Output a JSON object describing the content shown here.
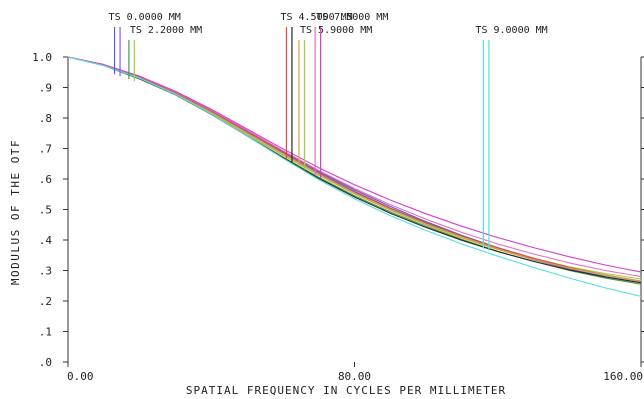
{
  "chart_data": {
    "type": "line",
    "title": "",
    "xlabel": "SPATIAL FREQUENCY IN CYCLES PER MILLIMETER",
    "ylabel": "MODULUS OF THE OTF",
    "xlim": [
      0,
      160
    ],
    "ylim": [
      0,
      1.0
    ],
    "x_ticks": [
      {
        "value": 0,
        "label": "0.00"
      },
      {
        "value": 80,
        "label": "80.00"
      },
      {
        "value": 160,
        "label": "160.00"
      }
    ],
    "y_ticks": [
      {
        "value": 1.0,
        "label": "1.0"
      },
      {
        "value": 0.9,
        "label": ".9"
      },
      {
        "value": 0.8,
        "label": ".8"
      },
      {
        "value": 0.7,
        "label": ".7"
      },
      {
        "value": 0.6,
        "label": ".6"
      },
      {
        "value": 0.5,
        "label": ".5"
      },
      {
        "value": 0.4,
        "label": ".4"
      },
      {
        "value": 0.3,
        "label": ".3"
      },
      {
        "value": 0.2,
        "label": ".2"
      },
      {
        "value": 0.1,
        "label": ".1"
      },
      {
        "value": 0.0,
        "label": ".0"
      }
    ],
    "grid": false,
    "x": [
      0,
      10,
      20,
      30,
      40,
      50,
      60,
      70,
      80,
      90,
      100,
      110,
      120,
      130,
      140,
      150,
      160
    ],
    "series": [
      {
        "color": "#5a5ad8",
        "values": [
          1.0,
          0.975,
          0.935,
          0.885,
          0.825,
          0.757,
          0.69,
          0.625,
          0.565,
          0.51,
          0.46,
          0.415,
          0.375,
          0.34,
          0.31,
          0.285,
          0.265
        ]
      },
      {
        "color": "#8060e0",
        "values": [
          1.0,
          0.974,
          0.933,
          0.882,
          0.82,
          0.752,
          0.684,
          0.618,
          0.557,
          0.503,
          0.455,
          0.41,
          0.37,
          0.335,
          0.305,
          0.28,
          0.26
        ]
      },
      {
        "color": "#40a040",
        "values": [
          1.0,
          0.972,
          0.928,
          0.876,
          0.812,
          0.742,
          0.672,
          0.606,
          0.545,
          0.492,
          0.445,
          0.402,
          0.363,
          0.33,
          0.3,
          0.275,
          0.255
        ]
      },
      {
        "color": "#a0d040",
        "values": [
          1.0,
          0.973,
          0.932,
          0.88,
          0.818,
          0.75,
          0.682,
          0.615,
          0.553,
          0.5,
          0.452,
          0.41,
          0.372,
          0.34,
          0.312,
          0.29,
          0.272
        ]
      },
      {
        "color": "#e04848",
        "values": [
          1.0,
          0.974,
          0.934,
          0.884,
          0.823,
          0.756,
          0.688,
          0.622,
          0.56,
          0.505,
          0.457,
          0.413,
          0.374,
          0.34,
          0.31,
          0.285,
          0.265
        ]
      },
      {
        "color": "#2a2a2a",
        "values": [
          1.0,
          0.972,
          0.929,
          0.876,
          0.812,
          0.741,
          0.67,
          0.602,
          0.541,
          0.488,
          0.441,
          0.399,
          0.362,
          0.33,
          0.302,
          0.279,
          0.26
        ]
      },
      {
        "color": "#e0a040",
        "values": [
          1.0,
          0.973,
          0.931,
          0.879,
          0.816,
          0.747,
          0.678,
          0.612,
          0.551,
          0.498,
          0.45,
          0.407,
          0.369,
          0.336,
          0.308,
          0.285,
          0.266
        ]
      },
      {
        "color": "#e070c0",
        "values": [
          1.0,
          0.975,
          0.936,
          0.886,
          0.826,
          0.76,
          0.693,
          0.628,
          0.569,
          0.516,
          0.468,
          0.425,
          0.387,
          0.354,
          0.325,
          0.3,
          0.28
        ]
      },
      {
        "color": "#d040d0",
        "values": [
          1.0,
          0.975,
          0.937,
          0.888,
          0.829,
          0.764,
          0.699,
          0.637,
          0.581,
          0.531,
          0.486,
          0.445,
          0.408,
          0.375,
          0.345,
          0.318,
          0.295
        ]
      },
      {
        "color": "#50e0e0",
        "values": [
          1.0,
          0.972,
          0.93,
          0.877,
          0.813,
          0.741,
          0.668,
          0.598,
          0.535,
          0.48,
          0.431,
          0.387,
          0.347,
          0.31,
          0.275,
          0.243,
          0.215
        ]
      }
    ],
    "field_markers": [
      {
        "label": "TS 0.0000 MM",
        "colors": [
          "#5a5ad8",
          "#8060e0"
        ],
        "x": 13
      },
      {
        "label": "TS 2.2000 MM",
        "colors": [
          "#40a040",
          "#a0d040"
        ],
        "x": 17
      },
      {
        "label": "TS 4.5000 MM",
        "colors": [
          "#e04848",
          "#2a2a2a"
        ],
        "x": 61
      },
      {
        "label": "TS 5.9000 MM",
        "colors": [
          "#e0a040",
          "#a0d040"
        ],
        "x": 64.5
      },
      {
        "label": "TS 7.5000 MM",
        "colors": [
          "#e070c0",
          "#d040d0"
        ],
        "x": 69
      },
      {
        "label": "TS 9.0000 MM",
        "colors": [
          "#50e0e0",
          "#50e0e0"
        ],
        "x": 116
      }
    ]
  }
}
